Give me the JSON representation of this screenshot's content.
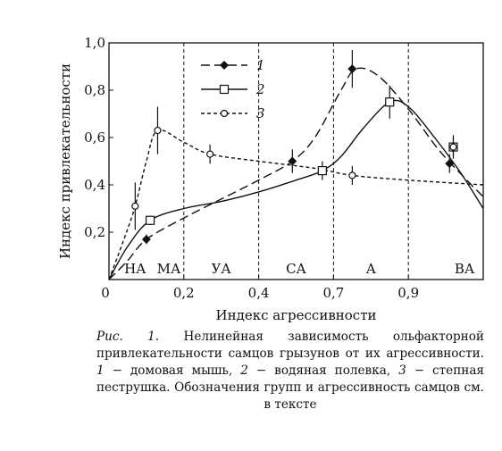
{
  "chart_data": {
    "type": "line",
    "xlabel": "Индекс агрессивности",
    "ylabel": "Индекс привлекательности",
    "xlim": [
      0,
      1.0
    ],
    "ylim": [
      0,
      1.0
    ],
    "x_ticks": [
      "0",
      "0,2",
      "0,4",
      "0,7",
      "0,9"
    ],
    "y_ticks": [
      "0,2",
      "0,4",
      "0,6",
      "0,8",
      "1,0"
    ],
    "groups": [
      "НА",
      "МА",
      "УА",
      "СА",
      "А",
      "ВА"
    ],
    "group_boundaries": [
      0.2,
      0.4,
      0.6,
      0.8
    ],
    "legend_position": "top-left",
    "series": [
      {
        "name": "1",
        "style": "long-dash",
        "marker": "filled-diamond",
        "points": [
          [
            0.1,
            0.17
          ],
          [
            0.49,
            0.5
          ],
          [
            0.65,
            0.89
          ],
          [
            0.91,
            0.49
          ]
        ],
        "errors": [
          0.02,
          0.05,
          0.08,
          0.04
        ],
        "curve": [
          [
            0,
            0
          ],
          [
            0.05,
            0.08
          ],
          [
            0.1,
            0.17
          ],
          [
            0.2,
            0.26
          ],
          [
            0.3,
            0.34
          ],
          [
            0.4,
            0.42
          ],
          [
            0.49,
            0.5
          ],
          [
            0.55,
            0.6
          ],
          [
            0.62,
            0.8
          ],
          [
            0.66,
            0.89
          ],
          [
            0.72,
            0.86
          ],
          [
            0.8,
            0.72
          ],
          [
            0.88,
            0.55
          ],
          [
            0.95,
            0.43
          ],
          [
            1.0,
            0.35
          ]
        ]
      },
      {
        "name": "2",
        "style": "solid",
        "marker": "open-square",
        "points": [
          [
            0.11,
            0.25
          ],
          [
            0.57,
            0.46
          ],
          [
            0.75,
            0.75
          ],
          [
            0.92,
            0.56
          ]
        ],
        "errors": [
          0.02,
          0.04,
          0.07,
          0.05
        ],
        "curve": [
          [
            0,
            0
          ],
          [
            0.05,
            0.14
          ],
          [
            0.11,
            0.25
          ],
          [
            0.2,
            0.3
          ],
          [
            0.3,
            0.33
          ],
          [
            0.4,
            0.37
          ],
          [
            0.5,
            0.42
          ],
          [
            0.57,
            0.46
          ],
          [
            0.62,
            0.52
          ],
          [
            0.68,
            0.64
          ],
          [
            0.75,
            0.75
          ],
          [
            0.8,
            0.73
          ],
          [
            0.87,
            0.6
          ],
          [
            0.94,
            0.45
          ],
          [
            1.0,
            0.3
          ]
        ]
      },
      {
        "name": "3",
        "style": "short-dash",
        "marker": "open-circle",
        "points": [
          [
            0.07,
            0.31
          ],
          [
            0.13,
            0.63
          ],
          [
            0.27,
            0.53
          ],
          [
            0.65,
            0.44
          ],
          [
            0.92,
            0.56
          ]
        ],
        "errors": [
          0.1,
          0.1,
          0.04,
          0.04,
          0.04
        ],
        "curve": [
          [
            0,
            0
          ],
          [
            0.04,
            0.17
          ],
          [
            0.07,
            0.31
          ],
          [
            0.1,
            0.5
          ],
          [
            0.13,
            0.63
          ],
          [
            0.2,
            0.58
          ],
          [
            0.27,
            0.53
          ],
          [
            0.4,
            0.5
          ],
          [
            0.55,
            0.47
          ],
          [
            0.65,
            0.44
          ],
          [
            0.8,
            0.42
          ],
          [
            1.0,
            0.4
          ]
        ]
      }
    ]
  },
  "caption": {
    "fig_label": "Рис. 1.",
    "text_a": " Нелинейная зависимость ольфакторной привлекательности самцов грызунов от их агрессивности. ",
    "n1": "1",
    "t1": " − домовая мышь, ",
    "n2": "2",
    "t2": " − водяная полевка, ",
    "n3": "3",
    "t3": " − степная пеструшка. Обозначения групп и агрессивность самцов см. в тексте"
  }
}
